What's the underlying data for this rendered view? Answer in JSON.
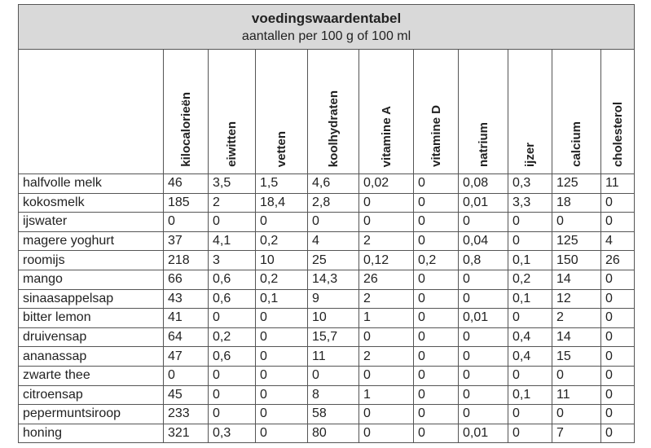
{
  "header": {
    "title": "voedingswaardentabel",
    "subtitle": "aantallen per 100 g of 100 ml"
  },
  "table": {
    "columns": [
      "kilocalorieën",
      "eiwitten",
      "vetten",
      "koolhydraten",
      "vitamine A",
      "vitamine D",
      "natrium",
      "ijzer",
      "calcium",
      "cholesterol"
    ],
    "rows": [
      [
        "halfvolle melk",
        "46",
        "3,5",
        "1,5",
        "4,6",
        "0,02",
        "0",
        "0,08",
        "0,3",
        "125",
        "11"
      ],
      [
        "kokosmelk",
        "185",
        "2",
        "18,4",
        "2,8",
        "0",
        "0",
        "0,01",
        "3,3",
        "18",
        "0"
      ],
      [
        "ijswater",
        "0",
        "0",
        "0",
        "0",
        "0",
        "0",
        "0",
        "0",
        "0",
        "0"
      ],
      [
        "magere yoghurt",
        "37",
        "4,1",
        "0,2",
        "4",
        "2",
        "0",
        "0,04",
        "0",
        "125",
        "4"
      ],
      [
        "roomijs",
        "218",
        "3",
        "10",
        "25",
        "0,12",
        "0,2",
        "0,8",
        "0,1",
        "150",
        "26"
      ],
      [
        "mango",
        "66",
        "0,6",
        "0,2",
        "14,3",
        "26",
        "0",
        "0",
        "0,2",
        "14",
        "0"
      ],
      [
        "sinaasappelsap",
        "43",
        "0,6",
        "0,1",
        "9",
        "2",
        "0",
        "0",
        "0,1",
        "12",
        "0"
      ],
      [
        "bitter lemon",
        "41",
        "0",
        "0",
        "10",
        "1",
        "0",
        "0,01",
        "0",
        "2",
        "0"
      ],
      [
        "druivensap",
        "64",
        "0,2",
        "0",
        "15,7",
        "0",
        "0",
        "0",
        "0,4",
        "14",
        "0"
      ],
      [
        "ananassap",
        "47",
        "0,6",
        "0",
        "11",
        "2",
        "0",
        "0",
        "0,4",
        "15",
        "0"
      ],
      [
        "zwarte thee",
        "0",
        "0",
        "0",
        "0",
        "0",
        "0",
        "0",
        "0",
        "0",
        "0"
      ],
      [
        "citroensap",
        "45",
        "0",
        "0",
        "8",
        "1",
        "0",
        "0",
        "0,1",
        "11",
        "0"
      ],
      [
        "pepermuntsiroop",
        "233",
        "0",
        "0",
        "58",
        "0",
        "0",
        "0",
        "0",
        "0",
        "0"
      ],
      [
        "honing",
        "321",
        "0,3",
        "0",
        "80",
        "0",
        "0",
        "0,01",
        "0",
        "7",
        "0"
      ]
    ]
  }
}
